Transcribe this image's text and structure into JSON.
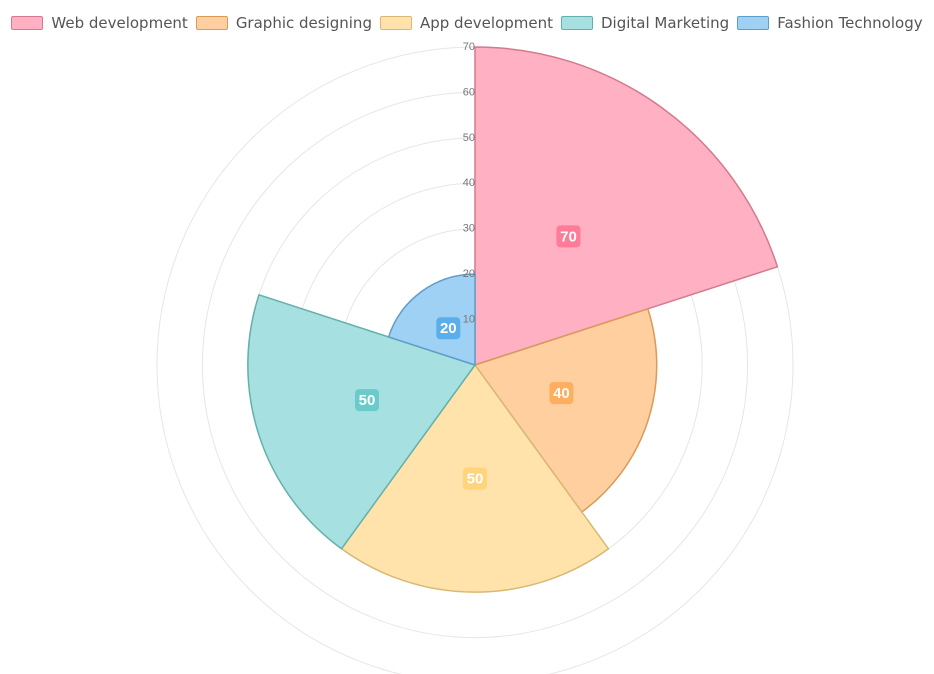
{
  "chart_data": {
    "type": "polarArea",
    "labels": [
      "Web development",
      "Graphic designing",
      "App development",
      "Digital Marketing",
      "Fashion Technology"
    ],
    "values": [
      70,
      40,
      50,
      50,
      20
    ],
    "value_labels": [
      "70",
      "40",
      "50",
      "50",
      "20"
    ],
    "rmax": 70,
    "ticks": [
      10,
      20,
      30,
      40,
      50,
      60,
      70
    ],
    "tick_labels": [
      "10",
      "20",
      "30",
      "40",
      "50",
      "60",
      "70"
    ],
    "colors": {
      "fill": [
        "#ffb0c2",
        "#ffcf9f",
        "#ffe3aa",
        "#a6e0e0",
        "#9fd1f5"
      ],
      "border": [
        "#d47a8e",
        "#d99a5a",
        "#d8b874",
        "#63b0ac",
        "#5f9dcb"
      ],
      "label_bg": [
        "#ff7b98",
        "#ffad5e",
        "#ffd47a",
        "#6bcbcb",
        "#5aaee9"
      ]
    },
    "legend_position": "top",
    "grid": true
  }
}
